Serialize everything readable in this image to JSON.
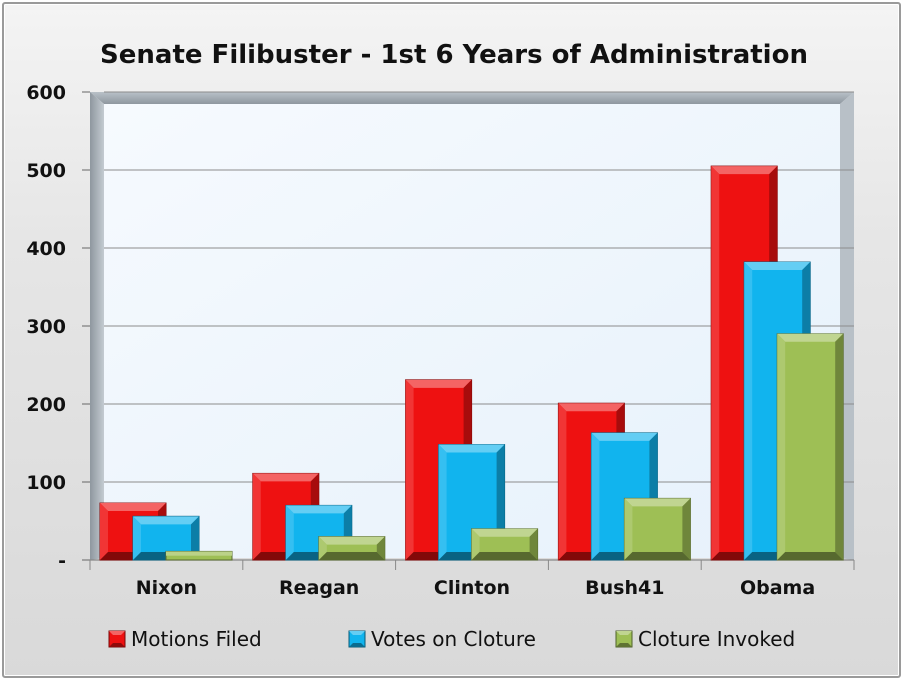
{
  "chart_data": {
    "type": "bar",
    "title": "Senate Filibuster - 1st 6 Years of Administration",
    "categories": [
      "Nixon",
      "Reagan",
      "Clinton",
      "Bush41",
      "Obama"
    ],
    "series": [
      {
        "name": "Motions Filed",
        "values": [
          73,
          111,
          231,
          201,
          505
        ],
        "color": "#ee1111"
      },
      {
        "name": "Votes on Cloture",
        "values": [
          56,
          70,
          148,
          163,
          382
        ],
        "color": "#11b4ee"
      },
      {
        "name": "Cloture Invoked",
        "values": [
          11,
          30,
          40,
          79,
          290
        ],
        "color": "#9ebf55"
      }
    ],
    "ylim": [
      0,
      600
    ],
    "yticks": [
      0,
      100,
      200,
      300,
      400,
      500,
      600
    ],
    "ytick_labels": [
      "-",
      "100",
      "200",
      "300",
      "400",
      "500",
      "600"
    ],
    "xlabel": "",
    "ylabel": "",
    "grid": true,
    "legend": "bottom"
  }
}
